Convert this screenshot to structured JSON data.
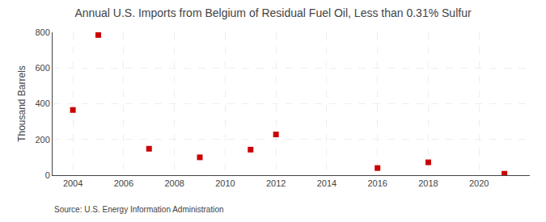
{
  "chart_data": {
    "type": "scatter",
    "title": "Annual U.S. Imports from Belgium of Residual Fuel Oil, Less than 0.31% Sulfur",
    "ylabel": "Thousand Barrels",
    "annotation": "Source: U.S. Energy Information Administration",
    "x": [
      2004,
      2005,
      2007,
      2009,
      2011,
      2012,
      2016,
      2018,
      2021
    ],
    "values": [
      365,
      785,
      148,
      100,
      143,
      228,
      40,
      72,
      8
    ],
    "xlim": [
      2003.2,
      2022.0
    ],
    "ylim": [
      0,
      800
    ],
    "xticks": [
      2004,
      2006,
      2008,
      2010,
      2012,
      2014,
      2016,
      2018,
      2020
    ],
    "yticks": [
      0,
      200,
      400,
      600,
      800
    ],
    "color": "#cc0000",
    "marker": "square",
    "grid": true
  }
}
